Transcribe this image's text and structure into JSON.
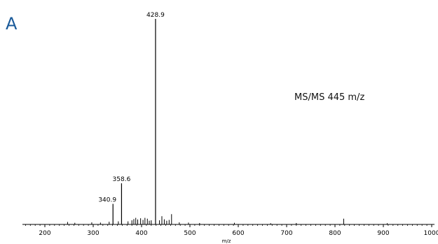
{
  "panel_label": "A",
  "annotation": "MS/MS 445 m/z",
  "colors": {
    "axis": "#000000",
    "peak": "#000000",
    "panel_label": "#1a5a9a"
  },
  "chart_data": {
    "type": "bar",
    "title": "",
    "xlabel": "m/z",
    "ylabel": "",
    "xlim": [
      150,
      1000
    ],
    "ylim": [
      0,
      100
    ],
    "x_ticks": [
      200,
      300,
      400,
      500,
      600,
      700,
      800,
      900,
      1000
    ],
    "x_tick_labels": [
      "200",
      "300",
      "400",
      "500",
      "600",
      "700",
      "800",
      "900",
      "1000"
    ],
    "grid": false,
    "legend": "none",
    "labeled_peaks": [
      {
        "mz": 428.9,
        "intensity": 100,
        "label": "428.9"
      },
      {
        "mz": 358.6,
        "intensity": 20,
        "label": "358.6"
      },
      {
        "mz": 340.9,
        "intensity": 10,
        "label": "340.9"
      }
    ],
    "minor_peaks": [
      {
        "mz": 247,
        "intensity": 1.2
      },
      {
        "mz": 262,
        "intensity": 0.8
      },
      {
        "mz": 297,
        "intensity": 1.0
      },
      {
        "mz": 315,
        "intensity": 0.9
      },
      {
        "mz": 333,
        "intensity": 1.3
      },
      {
        "mz": 352,
        "intensity": 1.5
      },
      {
        "mz": 372,
        "intensity": 1.5
      },
      {
        "mz": 380,
        "intensity": 2.0
      },
      {
        "mz": 384,
        "intensity": 2.6
      },
      {
        "mz": 388,
        "intensity": 3.2
      },
      {
        "mz": 392,
        "intensity": 2.4
      },
      {
        "mz": 398,
        "intensity": 3.0
      },
      {
        "mz": 403,
        "intensity": 2.2
      },
      {
        "mz": 407,
        "intensity": 3.2
      },
      {
        "mz": 412,
        "intensity": 2.8
      },
      {
        "mz": 416,
        "intensity": 1.8
      },
      {
        "mz": 420,
        "intensity": 2.0
      },
      {
        "mz": 437,
        "intensity": 2.0
      },
      {
        "mz": 442,
        "intensity": 4.0
      },
      {
        "mz": 447,
        "intensity": 2.5
      },
      {
        "mz": 452,
        "intensity": 1.8
      },
      {
        "mz": 457,
        "intensity": 2.2
      },
      {
        "mz": 462,
        "intensity": 5.0
      },
      {
        "mz": 478,
        "intensity": 1.0
      },
      {
        "mz": 497,
        "intensity": 0.9
      },
      {
        "mz": 520,
        "intensity": 0.7
      },
      {
        "mz": 592,
        "intensity": 0.8
      },
      {
        "mz": 667,
        "intensity": 0.6
      },
      {
        "mz": 720,
        "intensity": 0.7
      },
      {
        "mz": 818,
        "intensity": 2.8
      },
      {
        "mz": 908,
        "intensity": 0.6
      }
    ]
  }
}
